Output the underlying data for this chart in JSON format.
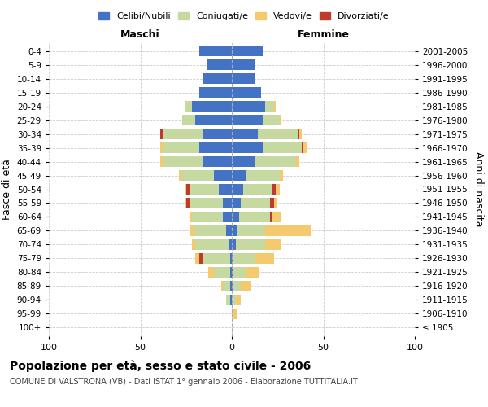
{
  "age_groups": [
    "100+",
    "95-99",
    "90-94",
    "85-89",
    "80-84",
    "75-79",
    "70-74",
    "65-69",
    "60-64",
    "55-59",
    "50-54",
    "45-49",
    "40-44",
    "35-39",
    "30-34",
    "25-29",
    "20-24",
    "15-19",
    "10-14",
    "5-9",
    "0-4"
  ],
  "birth_years": [
    "≤ 1905",
    "1906-1910",
    "1911-1915",
    "1916-1920",
    "1921-1925",
    "1926-1930",
    "1931-1935",
    "1936-1940",
    "1941-1945",
    "1946-1950",
    "1951-1955",
    "1956-1960",
    "1961-1965",
    "1966-1970",
    "1971-1975",
    "1976-1980",
    "1981-1985",
    "1986-1990",
    "1991-1995",
    "1996-2000",
    "2001-2005"
  ],
  "males_celibi": [
    0,
    0,
    1,
    1,
    1,
    1,
    2,
    3,
    5,
    5,
    7,
    10,
    16,
    18,
    16,
    20,
    22,
    18,
    16,
    14,
    18
  ],
  "males_coniugati": [
    0,
    0,
    2,
    4,
    9,
    15,
    18,
    18,
    17,
    18,
    16,
    18,
    22,
    20,
    22,
    7,
    4,
    0,
    0,
    0,
    0
  ],
  "males_vedovi": [
    0,
    0,
    0,
    1,
    3,
    2,
    2,
    2,
    1,
    1,
    1,
    1,
    1,
    1,
    0,
    0,
    0,
    0,
    0,
    0,
    0
  ],
  "males_divorziati": [
    0,
    0,
    0,
    0,
    0,
    2,
    0,
    0,
    0,
    2,
    2,
    0,
    0,
    0,
    1,
    0,
    0,
    0,
    0,
    0,
    0
  ],
  "females_nubili": [
    0,
    0,
    0,
    1,
    1,
    1,
    2,
    3,
    4,
    5,
    6,
    8,
    13,
    17,
    14,
    17,
    18,
    16,
    13,
    13,
    17
  ],
  "females_coniugate": [
    0,
    1,
    2,
    4,
    7,
    12,
    16,
    15,
    17,
    16,
    16,
    18,
    22,
    21,
    22,
    9,
    5,
    0,
    0,
    0,
    0
  ],
  "females_vedove": [
    0,
    2,
    3,
    5,
    7,
    10,
    9,
    25,
    5,
    2,
    2,
    2,
    2,
    2,
    1,
    1,
    1,
    0,
    0,
    0,
    0
  ],
  "females_divorziate": [
    0,
    0,
    0,
    0,
    0,
    0,
    0,
    0,
    1,
    2,
    2,
    0,
    0,
    1,
    1,
    0,
    0,
    0,
    0,
    0,
    0
  ],
  "color_celibi": "#4472c4",
  "color_coniugati": "#c5d9a0",
  "color_vedovi": "#f5c96e",
  "color_divorziati": "#c0392b",
  "xlim": 100,
  "title": "Popolazione per età, sesso e stato civile - 2006",
  "subtitle": "COMUNE DI VALSTRONA (VB) - Dati ISTAT 1° gennaio 2006 - Elaborazione TUTTITALIA.IT",
  "ylabel_left": "Fasce di età",
  "ylabel_right": "Anni di nascita",
  "label_maschi": "Maschi",
  "label_femmine": "Femmine",
  "legend_labels": [
    "Celibi/Nubili",
    "Coniugati/e",
    "Vedovi/e",
    "Divorziati/e"
  ],
  "grid_color": "#cccccc"
}
